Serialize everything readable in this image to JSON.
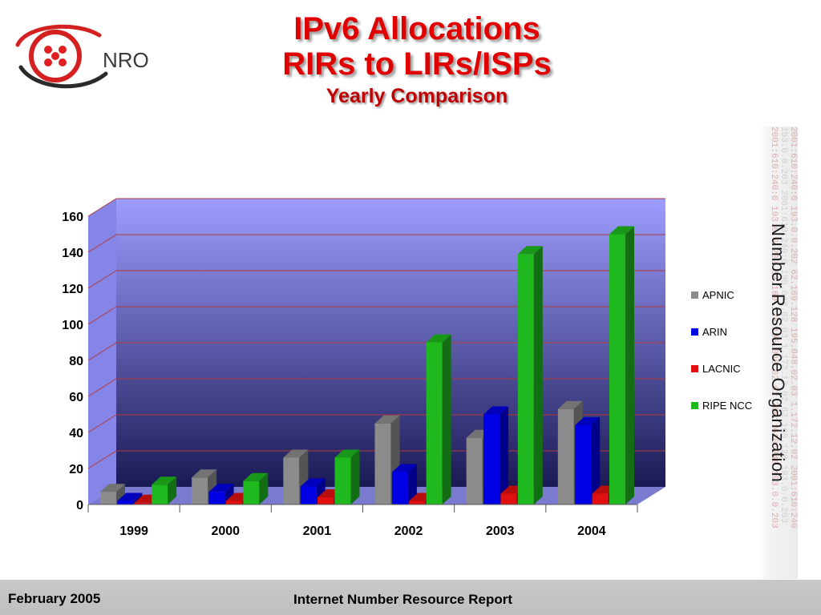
{
  "logo": {
    "text": "NRO"
  },
  "title": {
    "line1": "IPv6 Allocations",
    "line2": "RIRs to LIRs/ISPs",
    "subtitle": "Yearly Comparison"
  },
  "side": {
    "org_name": "Number Resource Organization",
    "watermark_lines": [
      "2001:610:240:0   193.0.0.202   62.169.128   195.048.02.03 1.172.12.02   2001:610:240",
      "193.0.0.203   2001:610:240:0   195.048.02.03   1.172.12.02   62.169.128   193.0.0.203",
      "2001:610:240:0   193.0.0.202   62.169.128   195.048.02.03   2001:610:240   193.0.0.203"
    ]
  },
  "footer": {
    "date": "February 2005",
    "title": "Internet Number Resource Report"
  },
  "chart_data": {
    "type": "bar",
    "categories": [
      "1999",
      "2000",
      "2001",
      "2002",
      "2003",
      "2004"
    ],
    "series": [
      {
        "name": "APNIC",
        "color": "#8c8c8c",
        "values": [
          7,
          15,
          26,
          45,
          37,
          53
        ]
      },
      {
        "name": "ARIN",
        "color": "#0000e6",
        "values": [
          2,
          7,
          10,
          18,
          50,
          44
        ]
      },
      {
        "name": "LACNIC",
        "color": "#e01010",
        "values": [
          1,
          2,
          4,
          2,
          6,
          6
        ]
      },
      {
        "name": "RIPE NCC",
        "color": "#1fb81f",
        "values": [
          11,
          13,
          26,
          90,
          139,
          150
        ]
      }
    ],
    "ylim": [
      0,
      160
    ],
    "yticks": [
      0,
      20,
      40,
      60,
      80,
      100,
      120,
      140,
      160
    ],
    "grid": true,
    "legend_position": "right",
    "projection": "3d",
    "colors": {
      "wall_top": "#9d9dff",
      "wall_bottom": "#1a1a55",
      "floor": "#7a7acf",
      "gridline": "#b33a3a"
    }
  }
}
